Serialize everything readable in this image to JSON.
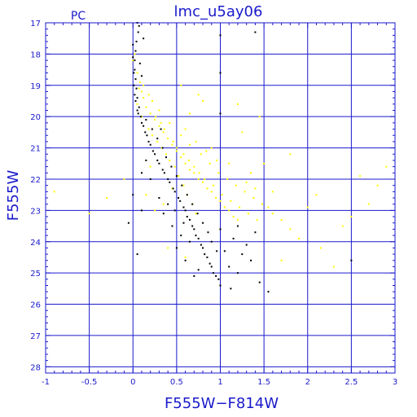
{
  "chart_data": {
    "type": "scatter",
    "title": "lmc_u5ay06",
    "corner_label": "PC",
    "xlabel": "F555W−F814W",
    "ylabel": "F555W",
    "xlim": [
      -1,
      3
    ],
    "ylim": [
      28.2,
      17
    ],
    "y_inverted": true,
    "grid": true,
    "x_ticks": [
      "-1",
      "-0.5",
      "0",
      "0.5",
      "1",
      "1.5",
      "2",
      "2.5",
      "3"
    ],
    "y_ticks": [
      "17",
      "18",
      "19",
      "20",
      "21",
      "22",
      "23",
      "24",
      "25",
      "26",
      "27",
      "28"
    ],
    "colors": {
      "axis": "#1a1acc",
      "series_black": "#000000",
      "series_yellow": "#ffff00"
    },
    "series": [
      {
        "color": "yellow",
        "points": [
          [
            0.05,
            18.6
          ],
          [
            0.08,
            18.9
          ],
          [
            0.1,
            19.2
          ],
          [
            0.12,
            19.4
          ],
          [
            0.05,
            19.6
          ],
          [
            0.15,
            19.7
          ],
          [
            0.2,
            19.9
          ],
          [
            0.1,
            20.0
          ],
          [
            0.25,
            20.1
          ],
          [
            0.3,
            20.3
          ],
          [
            0.18,
            20.4
          ],
          [
            0.35,
            20.5
          ],
          [
            0.22,
            20.6
          ],
          [
            0.4,
            20.7
          ],
          [
            0.28,
            20.8
          ],
          [
            0.45,
            20.9
          ],
          [
            0.33,
            21.0
          ],
          [
            0.5,
            21.1
          ],
          [
            0.38,
            21.2
          ],
          [
            0.55,
            21.3
          ],
          [
            0.42,
            21.4
          ],
          [
            0.6,
            21.5
          ],
          [
            0.48,
            21.6
          ],
          [
            0.65,
            21.7
          ],
          [
            0.7,
            21.8
          ],
          [
            0.52,
            21.9
          ],
          [
            0.75,
            22.0
          ],
          [
            0.8,
            22.1
          ],
          [
            0.58,
            22.2
          ],
          [
            0.85,
            22.3
          ],
          [
            0.9,
            22.4
          ],
          [
            0.62,
            22.5
          ],
          [
            0.95,
            22.6
          ],
          [
            1.0,
            22.7
          ],
          [
            0.68,
            22.8
          ],
          [
            1.05,
            22.9
          ],
          [
            1.1,
            23.0
          ],
          [
            0.72,
            23.1
          ],
          [
            1.15,
            23.2
          ],
          [
            1.2,
            23.3
          ],
          [
            0.3,
            19.8
          ],
          [
            0.42,
            20.2
          ],
          [
            0.55,
            20.6
          ],
          [
            0.65,
            20.9
          ],
          [
            0.78,
            21.2
          ],
          [
            0.88,
            21.5
          ],
          [
            0.98,
            21.8
          ],
          [
            1.08,
            22.0
          ],
          [
            1.18,
            22.2
          ],
          [
            1.28,
            22.4
          ],
          [
            1.38,
            22.6
          ],
          [
            1.48,
            22.8
          ],
          [
            0.6,
            20.4
          ],
          [
            0.72,
            20.8
          ],
          [
            0.84,
            21.1
          ],
          [
            0.96,
            21.4
          ],
          [
            1.3,
            22.1
          ],
          [
            1.4,
            22.3
          ],
          [
            1.55,
            22.9
          ],
          [
            1.6,
            23.1
          ],
          [
            1.7,
            23.3
          ],
          [
            1.8,
            23.6
          ],
          [
            1.9,
            23.9
          ],
          [
            2.1,
            22.5
          ],
          [
            2.6,
            21.9
          ],
          [
            2.8,
            22.2
          ],
          [
            2.9,
            21.6
          ],
          [
            2.5,
            23.2
          ],
          [
            1.5,
            21.5
          ],
          [
            1.2,
            19.6
          ],
          [
            0.75,
            19.3
          ],
          [
            0.55,
            19.0
          ],
          [
            -0.1,
            22.0
          ],
          [
            -0.3,
            22.6
          ],
          [
            -0.5,
            23.1
          ],
          [
            -0.9,
            22.4
          ],
          [
            0.15,
            22.5
          ],
          [
            0.25,
            23.0
          ],
          [
            0.4,
            24.2
          ],
          [
            0.6,
            24.5
          ],
          [
            1.7,
            24.6
          ],
          [
            2.3,
            24.8
          ],
          [
            2.15,
            24.2
          ],
          [
            0.0,
            18.2
          ],
          [
            0.02,
            18.0
          ],
          [
            0.07,
            19.1
          ],
          [
            0.12,
            19.0
          ],
          [
            0.18,
            19.3
          ],
          [
            0.22,
            19.5
          ],
          [
            0.26,
            20.0
          ],
          [
            0.32,
            20.2
          ],
          [
            0.36,
            20.4
          ],
          [
            0.46,
            20.8
          ],
          [
            0.5,
            21.0
          ],
          [
            0.58,
            21.2
          ],
          [
            0.64,
            21.4
          ],
          [
            0.7,
            21.6
          ],
          [
            0.76,
            21.8
          ],
          [
            0.82,
            22.0
          ],
          [
            0.92,
            22.2
          ],
          [
            1.02,
            22.5
          ],
          [
            1.12,
            22.7
          ],
          [
            1.22,
            22.9
          ],
          [
            1.32,
            23.1
          ],
          [
            1.42,
            23.3
          ],
          [
            1.35,
            21.8
          ],
          [
            1.1,
            21.5
          ],
          [
            0.9,
            21.0
          ],
          [
            0.45,
            22.3
          ],
          [
            0.35,
            22.8
          ],
          [
            0.2,
            21.6
          ],
          [
            1.8,
            21.2
          ],
          [
            2.0,
            22.9
          ],
          [
            2.4,
            23.5
          ],
          [
            2.7,
            22.8
          ],
          [
            1.25,
            20.5
          ],
          [
            1.45,
            20.0
          ],
          [
            0.8,
            19.5
          ],
          [
            0.65,
            19.9
          ],
          [
            1.6,
            22.4
          ]
        ]
      },
      {
        "color": "black",
        "points": [
          [
            0.05,
            17.0
          ],
          [
            0.06,
            17.3
          ],
          [
            0.04,
            17.6
          ],
          [
            0.03,
            17.9
          ],
          [
            0.02,
            18.2
          ],
          [
            0.02,
            18.5
          ],
          [
            0.03,
            18.8
          ],
          [
            0.04,
            19.1
          ],
          [
            0.05,
            19.4
          ],
          [
            0.07,
            19.7
          ],
          [
            0.09,
            20.0
          ],
          [
            0.12,
            20.3
          ],
          [
            0.16,
            20.6
          ],
          [
            0.2,
            20.9
          ],
          [
            0.25,
            21.2
          ],
          [
            0.3,
            21.5
          ],
          [
            0.36,
            21.8
          ],
          [
            0.42,
            22.1
          ],
          [
            0.48,
            22.4
          ],
          [
            0.54,
            22.7
          ],
          [
            0.6,
            23.0
          ],
          [
            0.65,
            23.3
          ],
          [
            0.7,
            23.6
          ],
          [
            0.75,
            23.9
          ],
          [
            0.8,
            24.2
          ],
          [
            0.85,
            24.5
          ],
          [
            0.9,
            24.8
          ],
          [
            0.95,
            25.1
          ],
          [
            1.0,
            25.4
          ],
          [
            0.07,
            17.1
          ],
          [
            0.0,
            17.7
          ],
          [
            0.0,
            18.1
          ],
          [
            0.01,
            18.6
          ],
          [
            0.01,
            19.0
          ],
          [
            0.03,
            19.5
          ],
          [
            0.06,
            19.9
          ],
          [
            0.1,
            20.2
          ],
          [
            0.14,
            20.5
          ],
          [
            0.18,
            20.8
          ],
          [
            0.23,
            21.1
          ],
          [
            0.28,
            21.4
          ],
          [
            0.34,
            21.7
          ],
          [
            0.4,
            22.0
          ],
          [
            0.46,
            22.3
          ],
          [
            0.52,
            22.6
          ],
          [
            0.58,
            22.9
          ],
          [
            0.62,
            23.2
          ],
          [
            0.68,
            23.5
          ],
          [
            0.72,
            23.8
          ],
          [
            0.78,
            24.1
          ],
          [
            0.82,
            24.4
          ],
          [
            0.88,
            24.7
          ],
          [
            0.92,
            25.0
          ],
          [
            1.05,
            24.3
          ],
          [
            1.1,
            24.8
          ],
          [
            1.2,
            25.0
          ],
          [
            0.55,
            23.8
          ],
          [
            0.5,
            24.2
          ],
          [
            0.45,
            23.5
          ],
          [
            0.35,
            23.1
          ],
          [
            0.3,
            22.6
          ],
          [
            0.6,
            24.6
          ],
          [
            0.7,
            25.1
          ],
          [
            0.75,
            24.9
          ],
          [
            1.0,
            23.6
          ],
          [
            1.15,
            23.9
          ],
          [
            1.25,
            24.4
          ],
          [
            1.3,
            24.1
          ],
          [
            1.4,
            23.7
          ],
          [
            0.98,
            25.2
          ],
          [
            1.12,
            25.5
          ],
          [
            1.45,
            25.3
          ],
          [
            1.55,
            25.6
          ],
          [
            2.5,
            24.6
          ],
          [
            1.0,
            17.4
          ],
          [
            1.0,
            18.6
          ],
          [
            1.0,
            19.9
          ],
          [
            1.4,
            17.3
          ],
          [
            0.1,
            21.8
          ],
          [
            0.0,
            22.5
          ],
          [
            -0.05,
            23.4
          ],
          [
            0.05,
            24.4
          ],
          [
            0.1,
            23.0
          ],
          [
            0.2,
            22.0
          ],
          [
            0.15,
            21.4
          ],
          [
            0.32,
            20.4
          ],
          [
            0.12,
            17.5
          ],
          [
            0.08,
            18.3
          ],
          [
            0.1,
            18.7
          ],
          [
            0.02,
            19.3
          ],
          [
            0.05,
            19.8
          ],
          [
            0.15,
            20.1
          ],
          [
            0.22,
            20.4
          ],
          [
            0.28,
            20.7
          ],
          [
            0.34,
            21.0
          ],
          [
            0.38,
            21.3
          ],
          [
            0.44,
            21.6
          ],
          [
            0.5,
            21.9
          ],
          [
            0.56,
            22.2
          ],
          [
            0.62,
            22.5
          ],
          [
            0.68,
            22.8
          ],
          [
            0.74,
            23.1
          ],
          [
            0.8,
            23.4
          ],
          [
            0.86,
            23.7
          ],
          [
            0.9,
            24.0
          ],
          [
            0.96,
            24.3
          ],
          [
            0.65,
            24.0
          ],
          [
            0.58,
            23.4
          ],
          [
            0.4,
            22.8
          ],
          [
            0.48,
            23.0
          ],
          [
            1.2,
            23.5
          ],
          [
            1.35,
            24.6
          ]
        ]
      }
    ]
  }
}
